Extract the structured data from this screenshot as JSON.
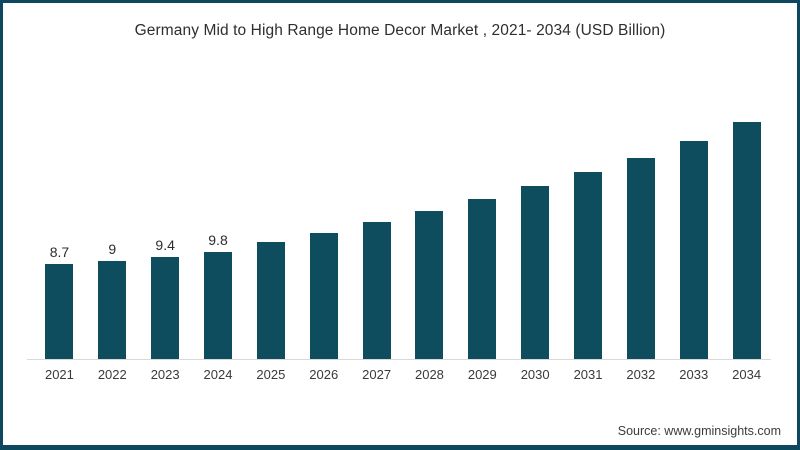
{
  "chart": {
    "title": "Germany Mid to High Range Home Decor Market , 2021- 2034 (USD Billion)",
    "source": "Source: www.gminsights.com"
  },
  "colors": {
    "bar": "#0e4d5e",
    "frame_border": "#0c495c",
    "axis_line": "#d9d9d9",
    "title_text": "#2e2e2e",
    "label_text": "#2d2d2d"
  },
  "chart_data": {
    "type": "bar",
    "title": "Germany Mid to High Range Home Decor Market , 2021- 2034 (USD Billion)",
    "categories": [
      "2021",
      "2022",
      "2023",
      "2024",
      "2025",
      "2026",
      "2027",
      "2028",
      "2029",
      "2030",
      "2031",
      "2032",
      "2033",
      "2034"
    ],
    "values": [
      8.7,
      9,
      9.4,
      9.8,
      10.8,
      11.6,
      12.6,
      13.6,
      14.7,
      15.9,
      17.2,
      18.5,
      20,
      21.8
    ],
    "data_labels": [
      "8.7",
      "9",
      "9.4",
      "9.8"
    ],
    "xlabel": "",
    "ylabel": "USD Billion",
    "ylim": [
      0,
      23
    ],
    "grid": false,
    "legend": "none",
    "bar_color": "#0e4d5e",
    "source": "Source: www.gminsights.com"
  }
}
